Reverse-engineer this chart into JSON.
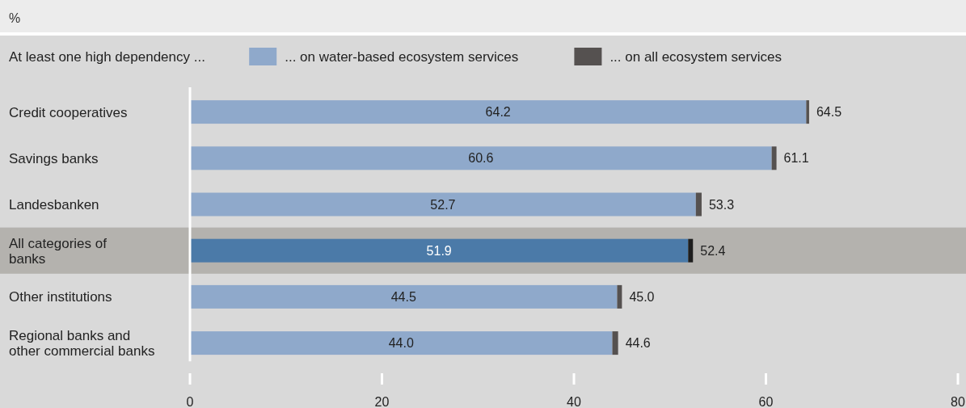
{
  "chart_data": {
    "type": "bar",
    "orientation": "horizontal",
    "stacked": true,
    "xlabel": "%",
    "legend_title": "At least one high dependency ...",
    "legend": "top",
    "categories": [
      "Credit cooperatives",
      "Savings banks",
      "Landesbanken",
      "All categories of banks",
      "Other institutions",
      "Regional banks and other commercial banks"
    ],
    "series": [
      {
        "name": "... on water-based ecosystem services",
        "color": "#8fa9cb",
        "colors": [
          "#8fa9cb",
          "#8fa9cb",
          "#8fa9cb",
          "#4b7aa8",
          "#8fa9cb",
          "#8fa9cb"
        ],
        "values": [
          64.2,
          60.6,
          52.7,
          51.9,
          44.5,
          44.0
        ],
        "value_labels": [
          "64.2",
          "60.6",
          "52.7",
          "51.9",
          "44.5",
          "44.0"
        ]
      },
      {
        "name": "... on all ecosystem services",
        "color": "#555150",
        "colors": [
          "#555150",
          "#555150",
          "#555150",
          "#1e1e1e",
          "#555150",
          "#555150"
        ],
        "values": [
          0.3,
          0.5,
          0.6,
          0.5,
          0.5,
          0.6
        ]
      }
    ],
    "totals": [
      "64.5",
      "61.1",
      "53.3",
      "52.4",
      "45.0",
      "44.6"
    ],
    "bands": [
      {
        "axis": "y",
        "from": "All categories of banks",
        "to": "All categories of banks",
        "color": "#b4b2ae"
      }
    ],
    "xlim": [
      0,
      80
    ],
    "xticks": [
      0,
      20,
      40,
      60,
      80
    ],
    "grid": false
  }
}
